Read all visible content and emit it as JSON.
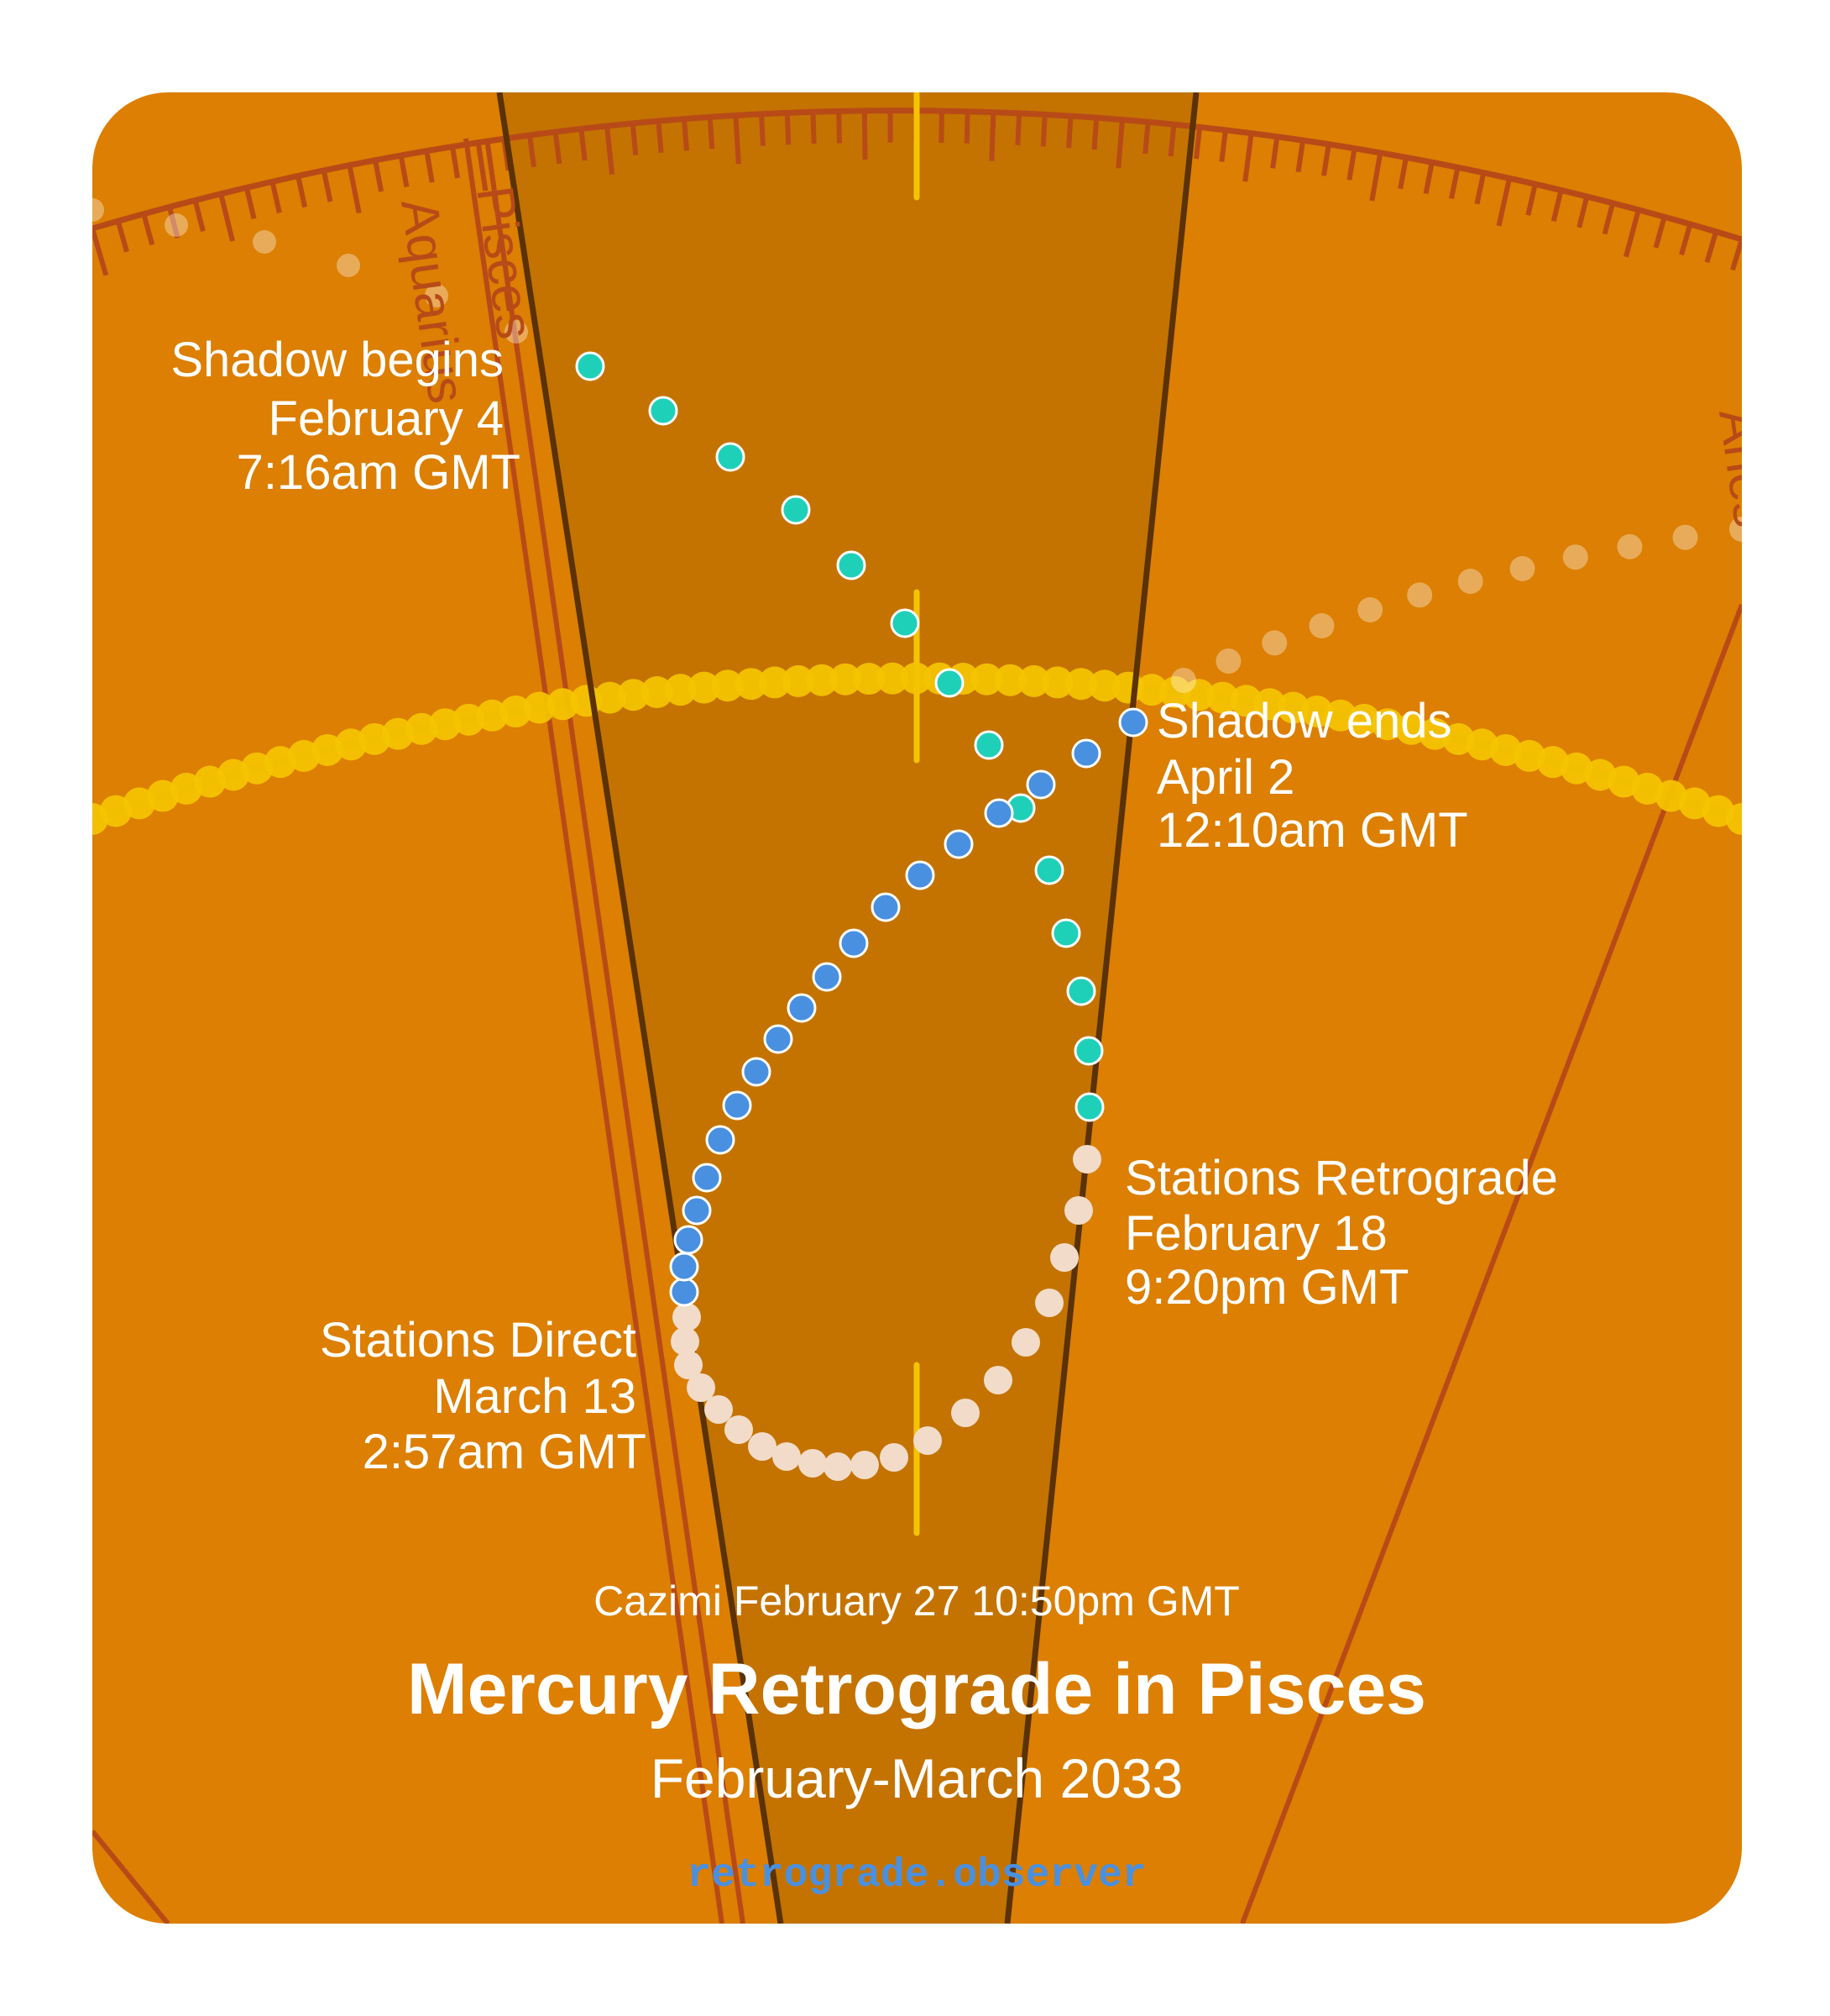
{
  "title": "Mercury Retrograde in Pisces",
  "subtitle": "February-March 2033",
  "cazimi": "Cazimi February 27 10:50pm GMT",
  "brand": "retrograde.observer",
  "signs": {
    "left": "Aquarius",
    "center": "Pisces",
    "right": "Aries"
  },
  "events": {
    "shadow_begins": [
      "Shadow begins",
      "February 4",
      "7:16am GMT"
    ],
    "shadow_ends": [
      "Shadow ends",
      "April 2",
      "12:10am GMT"
    ],
    "stations_retrograde": [
      "Stations Retrograde",
      "February 18",
      "9:20pm GMT"
    ],
    "stations_direct": [
      "Stations Direct",
      "March 13",
      "2:57am GMT"
    ]
  },
  "colors": {
    "background": "#dc7f02",
    "shadow_band": "#c47300",
    "pre_shadow_dots": "#1fd0b8",
    "retrograde_dots": "#f2dcc9",
    "post_shadow_dots": "#4a90e0",
    "sun_path": "#f5c400",
    "ruler": "#b84a18",
    "text": "#ffffff",
    "brand": "#4a90e0"
  }
}
